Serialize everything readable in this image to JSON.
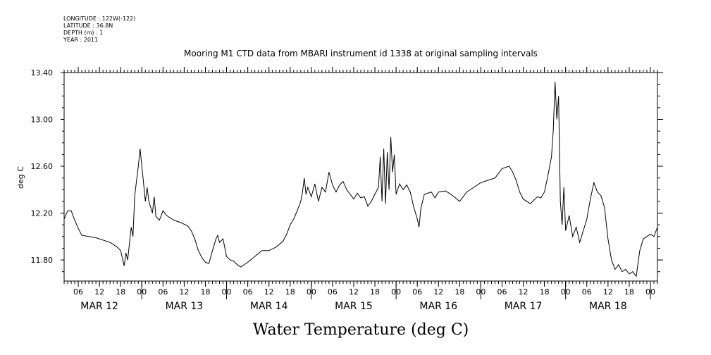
{
  "header": {
    "lines": [
      "LONGITUDE : 122W(-122)",
      "LATITUDE : 36.8N",
      "DEPTH (m) : 1",
      "YEAR : 2011"
    ]
  },
  "chart_data": {
    "type": "line",
    "title": "Mooring M1 CTD data from MBARI instrument id 1338 at original sampling intervals",
    "xlabel": "Water Temperature (deg C)",
    "ylabel": "deg C",
    "ylim": [
      11.62,
      13.4
    ],
    "xlim": [
      "2011-03-12T02:00",
      "2011-03-19T02:00"
    ],
    "grid": false,
    "yticks": [
      "13.40",
      "13.00",
      "12.60",
      "12.20",
      "11.80"
    ],
    "ytick_values": [
      13.4,
      13.0,
      12.6,
      12.2,
      11.8
    ],
    "hour_ticks": [
      {
        "t": "2011-03-12T06:00",
        "label": "06"
      },
      {
        "t": "2011-03-12T12:00",
        "label": "12"
      },
      {
        "t": "2011-03-12T18:00",
        "label": "18"
      },
      {
        "t": "2011-03-13T00:00",
        "label": "00"
      },
      {
        "t": "2011-03-13T06:00",
        "label": "06"
      },
      {
        "t": "2011-03-13T12:00",
        "label": "12"
      },
      {
        "t": "2011-03-13T18:00",
        "label": "18"
      },
      {
        "t": "2011-03-14T00:00",
        "label": "00"
      },
      {
        "t": "2011-03-14T06:00",
        "label": "06"
      },
      {
        "t": "2011-03-14T12:00",
        "label": "12"
      },
      {
        "t": "2011-03-14T18:00",
        "label": "18"
      },
      {
        "t": "2011-03-15T00:00",
        "label": "00"
      },
      {
        "t": "2011-03-15T06:00",
        "label": "06"
      },
      {
        "t": "2011-03-15T12:00",
        "label": "12"
      },
      {
        "t": "2011-03-15T18:00",
        "label": "18"
      },
      {
        "t": "2011-03-16T00:00",
        "label": "00"
      },
      {
        "t": "2011-03-16T06:00",
        "label": "06"
      },
      {
        "t": "2011-03-16T12:00",
        "label": "12"
      },
      {
        "t": "2011-03-16T18:00",
        "label": "18"
      },
      {
        "t": "2011-03-17T00:00",
        "label": "00"
      },
      {
        "t": "2011-03-17T06:00",
        "label": "06"
      },
      {
        "t": "2011-03-17T12:00",
        "label": "12"
      },
      {
        "t": "2011-03-17T18:00",
        "label": "18"
      },
      {
        "t": "2011-03-18T00:00",
        "label": "00"
      },
      {
        "t": "2011-03-18T06:00",
        "label": "06"
      },
      {
        "t": "2011-03-18T12:00",
        "label": "12"
      },
      {
        "t": "2011-03-18T18:00",
        "label": "18"
      },
      {
        "t": "2011-03-19T00:00",
        "label": "00"
      }
    ],
    "day_labels": [
      {
        "t": "2011-03-12T12:00",
        "label": "MAR 12"
      },
      {
        "t": "2011-03-13T12:00",
        "label": "MAR 13"
      },
      {
        "t": "2011-03-14T12:00",
        "label": "MAR 14"
      },
      {
        "t": "2011-03-15T12:00",
        "label": "MAR 15"
      },
      {
        "t": "2011-03-16T12:00",
        "label": "MAR 16"
      },
      {
        "t": "2011-03-17T12:00",
        "label": "MAR 17"
      },
      {
        "t": "2011-03-18T12:00",
        "label": "MAR 18"
      }
    ],
    "series": [
      {
        "line_color": "#000000",
        "points": [
          [
            "2011-03-12T02:00",
            12.15
          ],
          [
            "2011-03-12T03:00",
            12.22
          ],
          [
            "2011-03-12T04:00",
            12.22
          ],
          [
            "2011-03-12T05:00",
            12.14
          ],
          [
            "2011-03-12T06:00",
            12.07
          ],
          [
            "2011-03-12T07:00",
            12.01
          ],
          [
            "2011-03-12T09:00",
            12.0
          ],
          [
            "2011-03-12T11:00",
            11.99
          ],
          [
            "2011-03-12T13:00",
            11.97
          ],
          [
            "2011-03-12T15:00",
            11.95
          ],
          [
            "2011-03-12T17:00",
            11.91
          ],
          [
            "2011-03-12T18:00",
            11.88
          ],
          [
            "2011-03-12T19:00",
            11.75
          ],
          [
            "2011-03-12T19:30",
            11.86
          ],
          [
            "2011-03-12T20:00",
            11.8
          ],
          [
            "2011-03-12T21:00",
            12.08
          ],
          [
            "2011-03-12T21:30",
            12.0
          ],
          [
            "2011-03-12T22:00",
            12.35
          ],
          [
            "2011-03-12T23:00",
            12.6
          ],
          [
            "2011-03-12T23:30",
            12.75
          ],
          [
            "2011-03-13T00:00",
            12.6
          ],
          [
            "2011-03-13T01:00",
            12.3
          ],
          [
            "2011-03-13T01:30",
            12.42
          ],
          [
            "2011-03-13T02:00",
            12.3
          ],
          [
            "2011-03-13T03:00",
            12.2
          ],
          [
            "2011-03-13T03:30",
            12.34
          ],
          [
            "2011-03-13T04:00",
            12.17
          ],
          [
            "2011-03-13T05:00",
            12.14
          ],
          [
            "2011-03-13T06:00",
            12.22
          ],
          [
            "2011-03-13T07:00",
            12.18
          ],
          [
            "2011-03-13T09:00",
            12.14
          ],
          [
            "2011-03-13T11:00",
            12.12
          ],
          [
            "2011-03-13T13:00",
            12.09
          ],
          [
            "2011-03-13T14:00",
            12.05
          ],
          [
            "2011-03-13T15:00",
            11.98
          ],
          [
            "2011-03-13T16:00",
            11.88
          ],
          [
            "2011-03-13T17:00",
            11.82
          ],
          [
            "2011-03-13T18:00",
            11.78
          ],
          [
            "2011-03-13T19:00",
            11.77
          ],
          [
            "2011-03-13T20:00",
            11.88
          ],
          [
            "2011-03-13T21:00",
            11.98
          ],
          [
            "2011-03-13T21:30",
            12.01
          ],
          [
            "2011-03-13T22:00",
            11.95
          ],
          [
            "2011-03-13T23:00",
            11.98
          ],
          [
            "2011-03-14T00:00",
            11.83
          ],
          [
            "2011-03-14T01:00",
            11.8
          ],
          [
            "2011-03-14T02:00",
            11.79
          ],
          [
            "2011-03-14T03:00",
            11.76
          ],
          [
            "2011-03-14T04:00",
            11.74
          ],
          [
            "2011-03-14T06:00",
            11.78
          ],
          [
            "2011-03-14T08:00",
            11.83
          ],
          [
            "2011-03-14T10:00",
            11.88
          ],
          [
            "2011-03-14T12:00",
            11.88
          ],
          [
            "2011-03-14T14:00",
            11.91
          ],
          [
            "2011-03-14T16:00",
            11.96
          ],
          [
            "2011-03-14T17:00",
            12.02
          ],
          [
            "2011-03-14T18:00",
            12.1
          ],
          [
            "2011-03-14T19:00",
            12.15
          ],
          [
            "2011-03-14T20:00",
            12.22
          ],
          [
            "2011-03-14T21:00",
            12.3
          ],
          [
            "2011-03-14T21:30",
            12.38
          ],
          [
            "2011-03-14T22:00",
            12.5
          ],
          [
            "2011-03-14T22:30",
            12.36
          ],
          [
            "2011-03-14T23:00",
            12.42
          ],
          [
            "2011-03-15T00:00",
            12.34
          ],
          [
            "2011-03-15T01:00",
            12.45
          ],
          [
            "2011-03-15T02:00",
            12.3
          ],
          [
            "2011-03-15T03:00",
            12.42
          ],
          [
            "2011-03-15T04:00",
            12.38
          ],
          [
            "2011-03-15T05:00",
            12.55
          ],
          [
            "2011-03-15T06:00",
            12.44
          ],
          [
            "2011-03-15T07:00",
            12.38
          ],
          [
            "2011-03-15T08:00",
            12.44
          ],
          [
            "2011-03-15T09:00",
            12.47
          ],
          [
            "2011-03-15T10:00",
            12.4
          ],
          [
            "2011-03-15T11:00",
            12.36
          ],
          [
            "2011-03-15T12:00",
            12.32
          ],
          [
            "2011-03-15T13:00",
            12.37
          ],
          [
            "2011-03-15T14:00",
            12.33
          ],
          [
            "2011-03-15T15:00",
            12.34
          ],
          [
            "2011-03-15T16:00",
            12.26
          ],
          [
            "2011-03-15T17:00",
            12.3
          ],
          [
            "2011-03-15T18:00",
            12.36
          ],
          [
            "2011-03-15T19:00",
            12.42
          ],
          [
            "2011-03-15T19:30",
            12.68
          ],
          [
            "2011-03-15T20:00",
            12.3
          ],
          [
            "2011-03-15T20:30",
            12.75
          ],
          [
            "2011-03-15T21:00",
            12.28
          ],
          [
            "2011-03-15T21:30",
            12.72
          ],
          [
            "2011-03-15T22:00",
            12.4
          ],
          [
            "2011-03-15T22:30",
            12.85
          ],
          [
            "2011-03-15T23:00",
            12.55
          ],
          [
            "2011-03-15T23:30",
            12.7
          ],
          [
            "2011-03-16T00:00",
            12.36
          ],
          [
            "2011-03-16T01:00",
            12.45
          ],
          [
            "2011-03-16T02:00",
            12.4
          ],
          [
            "2011-03-16T03:00",
            12.44
          ],
          [
            "2011-03-16T04:00",
            12.38
          ],
          [
            "2011-03-16T05:00",
            12.25
          ],
          [
            "2011-03-16T06:00",
            12.15
          ],
          [
            "2011-03-16T06:30",
            12.08
          ],
          [
            "2011-03-16T07:00",
            12.24
          ],
          [
            "2011-03-16T08:00",
            12.36
          ],
          [
            "2011-03-16T10:00",
            12.38
          ],
          [
            "2011-03-16T11:00",
            12.33
          ],
          [
            "2011-03-16T12:00",
            12.38
          ],
          [
            "2011-03-16T14:00",
            12.39
          ],
          [
            "2011-03-16T16:00",
            12.35
          ],
          [
            "2011-03-16T18:00",
            12.3
          ],
          [
            "2011-03-16T20:00",
            12.38
          ],
          [
            "2011-03-16T22:00",
            12.42
          ],
          [
            "2011-03-17T00:00",
            12.46
          ],
          [
            "2011-03-17T02:00",
            12.48
          ],
          [
            "2011-03-17T04:00",
            12.5
          ],
          [
            "2011-03-17T06:00",
            12.58
          ],
          [
            "2011-03-17T08:00",
            12.6
          ],
          [
            "2011-03-17T09:00",
            12.55
          ],
          [
            "2011-03-17T10:00",
            12.48
          ],
          [
            "2011-03-17T11:00",
            12.38
          ],
          [
            "2011-03-17T12:00",
            12.32
          ],
          [
            "2011-03-17T14:00",
            12.28
          ],
          [
            "2011-03-17T16:00",
            12.34
          ],
          [
            "2011-03-17T17:00",
            12.33
          ],
          [
            "2011-03-17T18:00",
            12.38
          ],
          [
            "2011-03-17T19:00",
            12.52
          ],
          [
            "2011-03-17T20:00",
            12.68
          ],
          [
            "2011-03-17T20:30",
            12.9
          ],
          [
            "2011-03-17T21:00",
            13.32
          ],
          [
            "2011-03-17T21:30",
            13.0
          ],
          [
            "2011-03-17T22:00",
            13.2
          ],
          [
            "2011-03-17T22:30",
            12.3
          ],
          [
            "2011-03-17T23:00",
            12.1
          ],
          [
            "2011-03-17T23:30",
            12.42
          ],
          [
            "2011-03-18T00:00",
            12.05
          ],
          [
            "2011-03-18T01:00",
            12.18
          ],
          [
            "2011-03-18T02:00",
            12.0
          ],
          [
            "2011-03-18T03:00",
            12.08
          ],
          [
            "2011-03-18T04:00",
            11.95
          ],
          [
            "2011-03-18T05:00",
            12.05
          ],
          [
            "2011-03-18T06:00",
            12.15
          ],
          [
            "2011-03-18T07:00",
            12.32
          ],
          [
            "2011-03-18T08:00",
            12.46
          ],
          [
            "2011-03-18T09:00",
            12.38
          ],
          [
            "2011-03-18T10:00",
            12.35
          ],
          [
            "2011-03-18T11:00",
            12.25
          ],
          [
            "2011-03-18T12:00",
            11.98
          ],
          [
            "2011-03-18T13:00",
            11.8
          ],
          [
            "2011-03-18T14:00",
            11.72
          ],
          [
            "2011-03-18T15:00",
            11.76
          ],
          [
            "2011-03-18T16:00",
            11.7
          ],
          [
            "2011-03-18T17:00",
            11.72
          ],
          [
            "2011-03-18T18:00",
            11.68
          ],
          [
            "2011-03-18T19:00",
            11.7
          ],
          [
            "2011-03-18T20:00",
            11.66
          ],
          [
            "2011-03-18T21:00",
            11.88
          ],
          [
            "2011-03-18T22:00",
            11.98
          ],
          [
            "2011-03-18T23:00",
            12.0
          ],
          [
            "2011-03-19T00:00",
            12.02
          ],
          [
            "2011-03-19T01:00",
            12.0
          ],
          [
            "2011-03-19T02:00",
            12.08
          ]
        ]
      }
    ]
  }
}
